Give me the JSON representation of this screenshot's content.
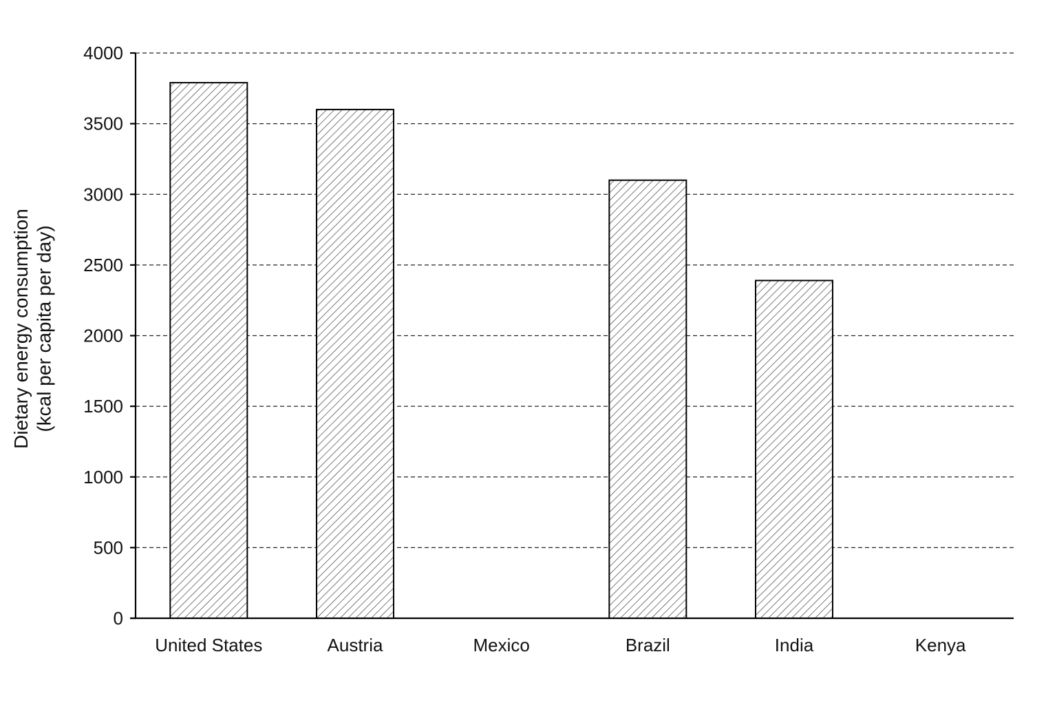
{
  "chart_data": {
    "type": "bar",
    "title": "",
    "xlabel": "",
    "ylabel_lines": [
      "Dietary energy consumption",
      "(kcal per capita per day)"
    ],
    "categories": [
      "United States",
      "Austria",
      "Mexico",
      "Brazil",
      "India",
      "Kenya"
    ],
    "values": [
      3790,
      3600,
      null,
      3100,
      2390,
      null
    ],
    "ylim": [
      0,
      4000
    ],
    "yticks": [
      0,
      500,
      1000,
      1500,
      2000,
      2500,
      3000,
      3500,
      4000
    ],
    "grid": "horizontal dashed",
    "bar_fill": "diagonal hatch",
    "bar_color": "#ffffff",
    "hatch_color": "#333333"
  }
}
